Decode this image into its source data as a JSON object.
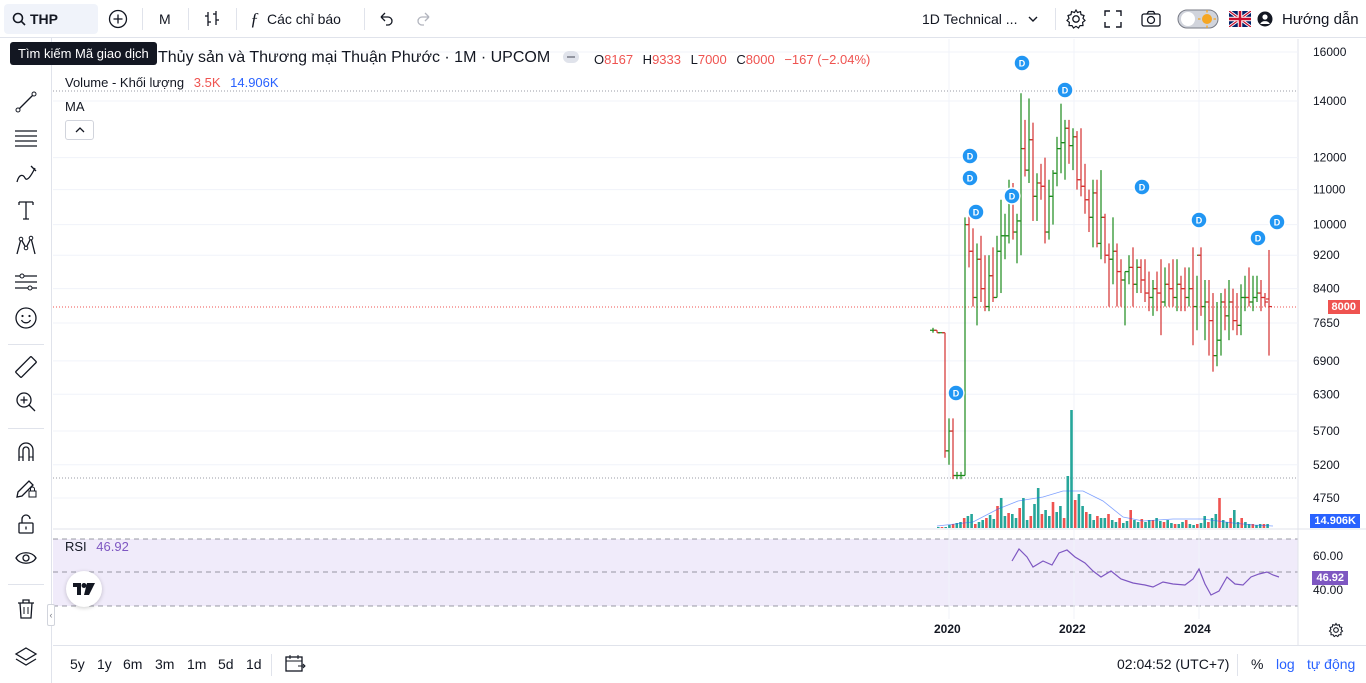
{
  "toolbar": {
    "symbol": "THP",
    "interval": "M",
    "indicators_label": "Các chỉ báo",
    "layout_name": "1D Technical ...",
    "help_label": "Hướng dẫn"
  },
  "tooltip": "Tìm kiếm Mã giao dịch",
  "legend": {
    "title": "Thủy sản và Thương mại Thuận Phước · 1M · UPCOM",
    "o_label": "O",
    "o_val": "8167",
    "h_label": "H",
    "h_val": "9333",
    "l_label": "L",
    "l_val": "7000",
    "c_label": "C",
    "c_val": "8000",
    "change": "−167 (−2.04%)",
    "volume_label": "Volume - Khối lượng",
    "volume_val": "3.5K",
    "volume_ma": "14.906K",
    "ma_label": "MA",
    "rsi_label": "RSI",
    "rsi_val": "46.92"
  },
  "price_axis": [
    "16000",
    "14000",
    "12000",
    "11000",
    "10000",
    "9200",
    "8400",
    "7650",
    "6900",
    "6300",
    "5700",
    "5200",
    "4750"
  ],
  "current_price": "8000",
  "volume_tag": "14.906K",
  "rsi_axis": [
    "60.00",
    "40.00"
  ],
  "rsi_tag": "46.92",
  "time_axis": [
    "2020",
    "2022",
    "2024"
  ],
  "bottom": {
    "ranges": [
      "5y",
      "1y",
      "6m",
      "3m",
      "1m",
      "5d",
      "1d"
    ],
    "clock": "02:04:52 (UTC+7)",
    "percent": "%",
    "log": "log",
    "auto": "tự động"
  },
  "dividend_marker": "D",
  "colors": {
    "up": "#26a69a",
    "down": "#ef5350",
    "bar_up": "#1b8a1b",
    "bar_down": "#d32f2f",
    "accent": "#2962ff",
    "rsi": "#7e57c2"
  },
  "chart_data": {
    "type": "ohlc",
    "interval": "1M",
    "last": {
      "open": 8167,
      "high": 9333,
      "low": 7000,
      "close": 8000
    }
  }
}
